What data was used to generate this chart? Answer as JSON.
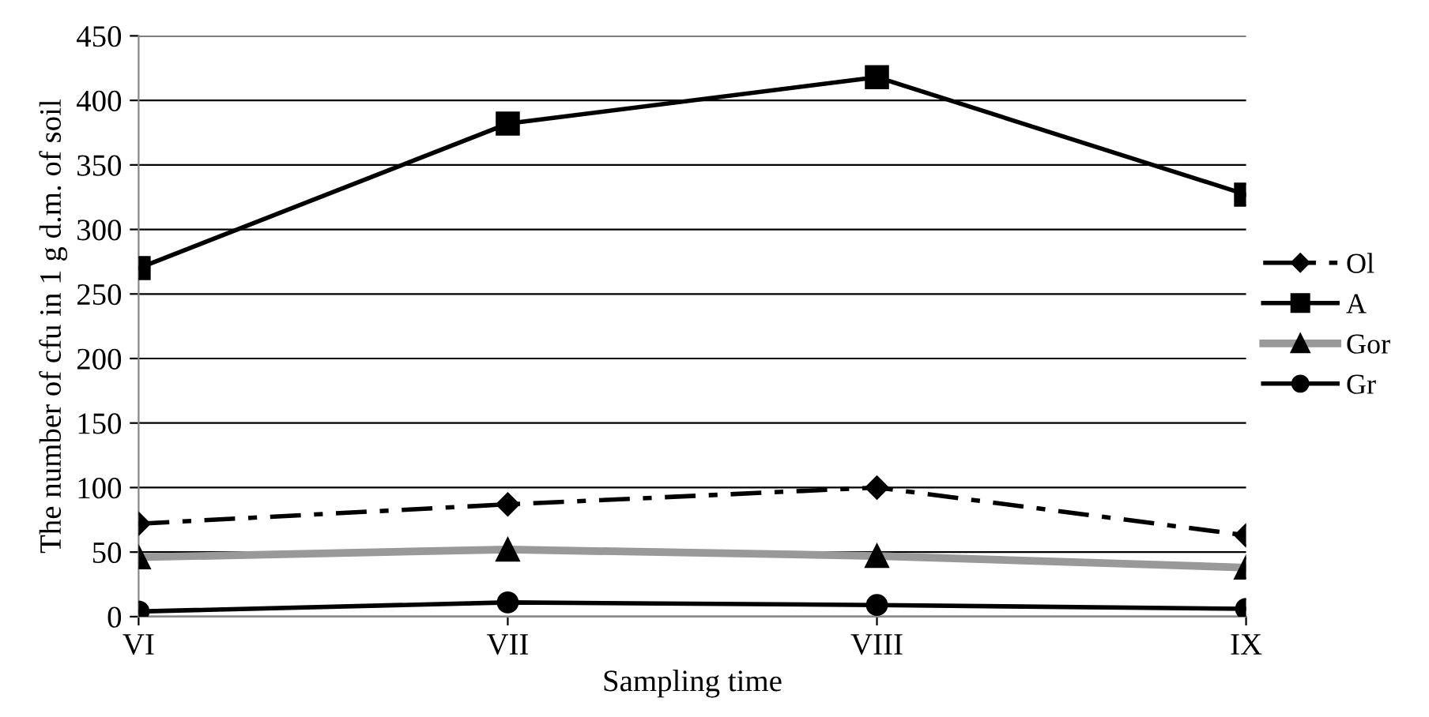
{
  "chart_data": {
    "type": "line",
    "xlabel": "Sampling time",
    "ylabel": "The number of cfu in 1 g d.m. of soil",
    "categories": [
      "VI",
      "VII",
      "VIII",
      "IX"
    ],
    "series": [
      {
        "name": "Ol",
        "color": "#000000",
        "values": [
          72,
          87,
          100,
          63
        ],
        "marker": "diamond",
        "line_style": "dashed"
      },
      {
        "name": "A",
        "color": "#000000",
        "values": [
          270,
          382,
          418,
          327
        ],
        "marker": "square",
        "line_style": "solid"
      },
      {
        "name": "Gor",
        "color": "#999999",
        "values": [
          46,
          52,
          47,
          38
        ],
        "marker": "triangle",
        "line_style": "solid"
      },
      {
        "name": "Gr",
        "color": "#000000",
        "values": [
          4,
          11,
          9,
          6
        ],
        "marker": "circle",
        "line_style": "solid"
      }
    ],
    "ylim": [
      0,
      450
    ],
    "yticks": [
      0,
      50,
      100,
      150,
      200,
      250,
      300,
      350,
      400,
      450
    ],
    "grid": "y",
    "legend": "right"
  }
}
